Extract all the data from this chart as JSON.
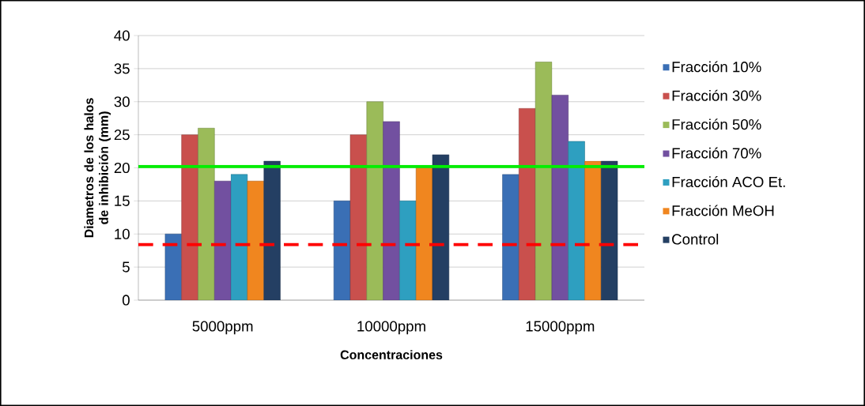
{
  "chart_data": {
    "type": "bar",
    "xlabel": "Concentraciones",
    "ylabel": "Diametros de los halos de inhibición (mm)",
    "categories": [
      "5000ppm",
      "10000ppm",
      "15000ppm"
    ],
    "series": [
      {
        "name": "Fracción 10%",
        "color": "#3a6fb5",
        "values": [
          10,
          15,
          19
        ]
      },
      {
        "name": "Fracción 30%",
        "color": "#c9504d",
        "values": [
          25,
          25,
          29
        ]
      },
      {
        "name": "Fracción 50%",
        "color": "#9bbb59",
        "values": [
          26,
          30,
          36
        ]
      },
      {
        "name": "Fracción 70%",
        "color": "#7250a0",
        "values": [
          18,
          27,
          31
        ]
      },
      {
        "name": "Fracción ACO Et.",
        "color": "#2e9fc0",
        "values": [
          19,
          15,
          24
        ]
      },
      {
        "name": "Fracción MeOH",
        "color": "#f0861f",
        "values": [
          18,
          20,
          21
        ]
      },
      {
        "name": "Control",
        "color": "#243f63",
        "values": [
          21,
          22,
          21
        ]
      }
    ],
    "ylim": [
      0,
      40
    ],
    "yticks": [
      0,
      5,
      10,
      15,
      20,
      25,
      30,
      35,
      40
    ],
    "grid": "y",
    "legend": "right",
    "ref_lines": [
      {
        "axis": "y",
        "value": 20.2,
        "color": "#00ee00",
        "line_style": "solid"
      },
      {
        "axis": "y",
        "value": 8.4,
        "color": "#ff0000",
        "line_style": "dashed"
      }
    ]
  }
}
